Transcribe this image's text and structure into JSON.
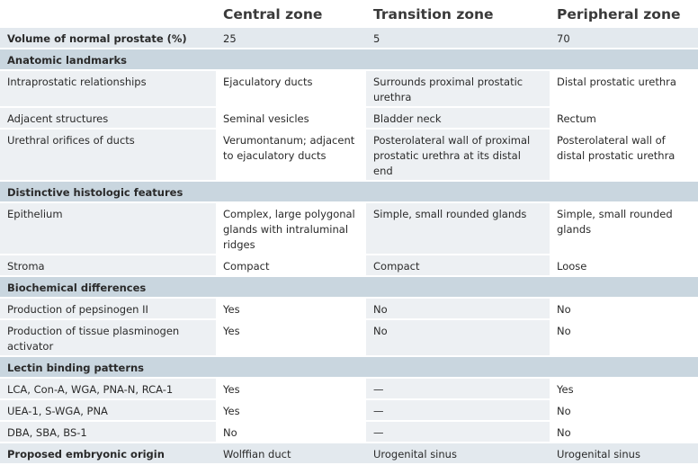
{
  "table": {
    "columns": [
      "Central zone",
      "Transition zone",
      "Peripheral zone"
    ],
    "rows": [
      {
        "cells": [
          "Volume of normal prostate (%)",
          "25",
          "5",
          "70"
        ],
        "bold": true
      },
      {
        "heading": "Anatomic landmarks"
      },
      {
        "cells": [
          "Intraprostatic relationships",
          "Ejaculatory ducts",
          "Surrounds proximal prostatic urethra",
          "Distal prostatic urethra"
        ]
      },
      {
        "cells": [
          "Adjacent structures",
          "Seminal vesicles",
          "Bladder neck",
          "Rectum"
        ]
      },
      {
        "cells": [
          "Urethral orifices of ducts",
          "Verumontanum; adjacent to ejaculatory ducts",
          "Posterolateral wall of proximal prostatic urethra at its distal end",
          "Posterolateral wall of distal prostatic urethra"
        ]
      },
      {
        "heading": "Distinctive histologic features"
      },
      {
        "cells": [
          "Epithelium",
          "Complex, large polygonal glands with intraluminal ridges",
          "Simple, small rounded glands",
          "Simple, small rounded glands"
        ]
      },
      {
        "cells": [
          "Stroma",
          "Compact",
          "Compact",
          "Loose"
        ]
      },
      {
        "heading": "Biochemical differences"
      },
      {
        "cells": [
          "Production of pepsinogen II",
          "Yes",
          "No",
          "No"
        ]
      },
      {
        "cells": [
          "Production of tissue plasminogen activator",
          "Yes",
          "No",
          "No"
        ]
      },
      {
        "heading": "Lectin binding patterns"
      },
      {
        "cells": [
          "LCA, Con-A, WGA, PNA-N, RCA-1",
          "Yes",
          "—",
          "Yes"
        ]
      },
      {
        "cells": [
          "UEA-1, S-WGA, PNA",
          "Yes",
          "—",
          "No"
        ]
      },
      {
        "cells": [
          "DBA, SBA, BS-1",
          "No",
          "—",
          "No"
        ]
      },
      {
        "cells": [
          "Proposed embryonic origin",
          "Wolffian duct",
          "Urogenital sinus",
          "Urogenital sinus"
        ],
        "bold": true
      }
    ]
  }
}
